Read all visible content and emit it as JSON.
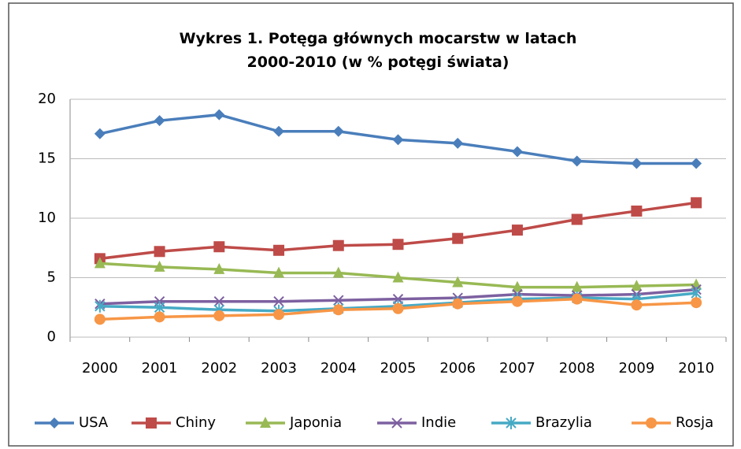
{
  "chart_data": {
    "type": "line",
    "title": "Wykres 1. Potęga głównych mocarstw w latach 2000-2010 (w % potęgi świata)",
    "categories": [
      "2000",
      "2001",
      "2002",
      "2003",
      "2004",
      "2005",
      "2006",
      "2007",
      "2008",
      "2009",
      "2010"
    ],
    "ylim": [
      0,
      20
    ],
    "yticks": [
      0,
      5,
      10,
      15,
      20
    ],
    "grid": true,
    "legend": "bottom",
    "series": [
      {
        "name": "USA",
        "color": "#4a7ebb",
        "marker": "diamond",
        "values": [
          17.1,
          18.2,
          18.7,
          17.3,
          17.3,
          16.6,
          16.3,
          15.6,
          14.8,
          14.6,
          14.6
        ]
      },
      {
        "name": "Chiny",
        "color": "#be4b48",
        "marker": "square",
        "values": [
          6.6,
          7.2,
          7.6,
          7.3,
          7.7,
          7.8,
          8.3,
          9.0,
          9.9,
          10.6,
          11.3
        ]
      },
      {
        "name": "Japonia",
        "color": "#98b954",
        "marker": "triangle",
        "values": [
          6.2,
          5.9,
          5.7,
          5.4,
          5.4,
          5.0,
          4.6,
          4.2,
          4.2,
          4.3,
          4.4
        ]
      },
      {
        "name": "Indie",
        "color": "#7d60a0",
        "marker": "x",
        "values": [
          2.8,
          3.0,
          3.0,
          3.0,
          3.1,
          3.2,
          3.3,
          3.6,
          3.5,
          3.6,
          4.0
        ]
      },
      {
        "name": "Brazylia",
        "color": "#46aac5",
        "marker": "star",
        "values": [
          2.6,
          2.5,
          2.3,
          2.2,
          2.4,
          2.6,
          2.9,
          3.2,
          3.3,
          3.2,
          3.7
        ]
      },
      {
        "name": "Rosja",
        "color": "#f79646",
        "marker": "circle",
        "values": [
          1.5,
          1.7,
          1.8,
          1.9,
          2.3,
          2.4,
          2.8,
          3.0,
          3.2,
          2.7,
          2.9
        ]
      }
    ]
  }
}
